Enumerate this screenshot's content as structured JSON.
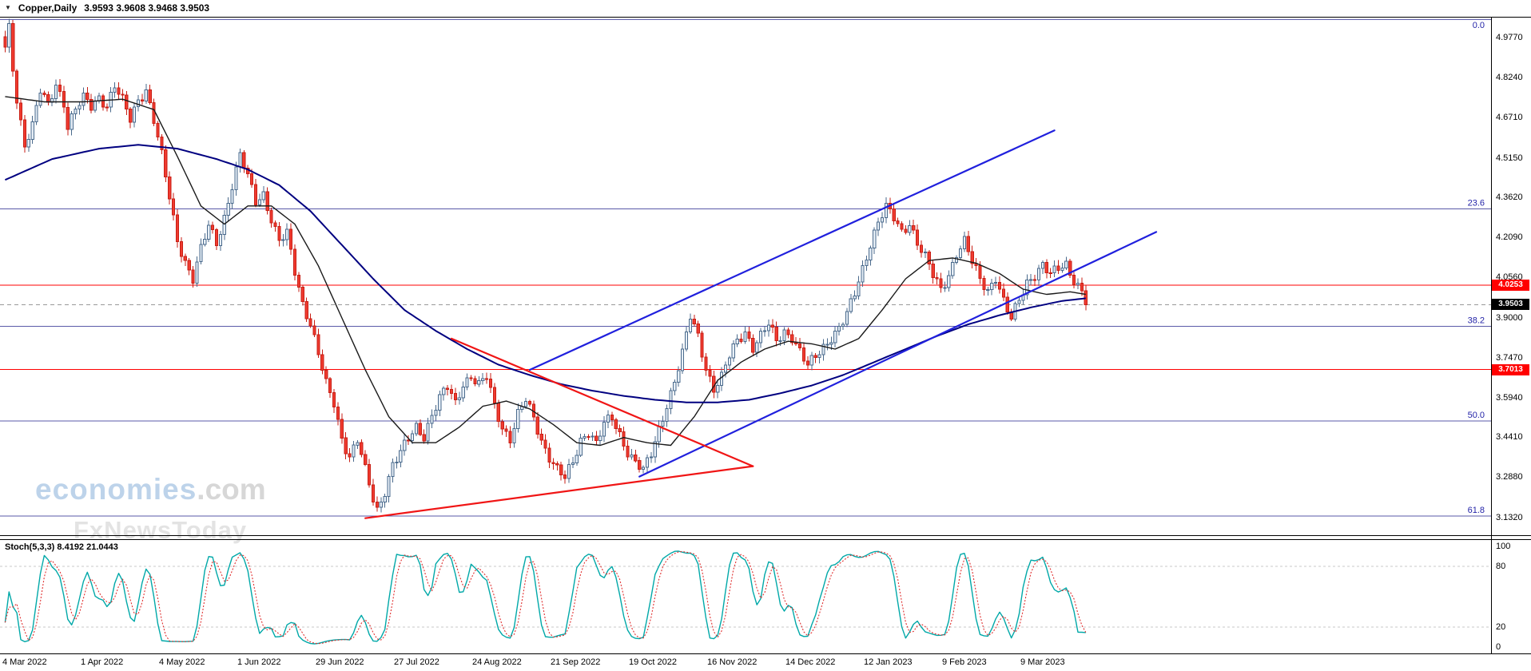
{
  "window": {
    "menu_icon": "▼",
    "symbol": "Copper,Daily",
    "ohlc": "3.9593 3.9608 3.9468 3.9503"
  },
  "watermark": {
    "brand": "economies",
    "brand_suffix": ".com",
    "subtitle": "FxNewsToday"
  },
  "colors": {
    "bull_fill": "#e6eef6",
    "bull_border": "#4a6a8c",
    "bear_fill": "#f03b30",
    "bear_border": "#c81e14",
    "ma_long": "#000080",
    "ma_short": "#1a1a1a",
    "trend_blue": "#2020dd",
    "trend_red": "#f01515",
    "fib_line": "#5a5aa8",
    "fib_text": "#2424a8",
    "h_line": "#ff0000",
    "current_line": "#999999",
    "stoch_k": "#00a8a8",
    "stoch_d": "#e03030",
    "stoch_level": "#c8c8c8",
    "tag_red_bg": "#ff0000",
    "tag_black_bg": "#000000"
  },
  "chart_data": {
    "type": "candlestick",
    "title": "Copper, Daily",
    "bars": 277,
    "ylim": [
      3.0647,
      5.0537
    ],
    "price_ticks": [
      {
        "label": "4.9770",
        "value": 4.977
      },
      {
        "label": "4.8240",
        "value": 4.824
      },
      {
        "label": "4.6710",
        "value": 4.671
      },
      {
        "label": "4.5150",
        "value": 4.515
      },
      {
        "label": "4.3620",
        "value": 4.362
      },
      {
        "label": "4.2090",
        "value": 4.209
      },
      {
        "label": "4.0560",
        "value": 4.056
      },
      {
        "label": "3.9000",
        "value": 3.9
      },
      {
        "label": "3.7470",
        "value": 3.747
      },
      {
        "label": "3.5940",
        "value": 3.594
      },
      {
        "label": "3.4410",
        "value": 3.441
      },
      {
        "label": "3.2880",
        "value": 3.288
      },
      {
        "label": "3.1320",
        "value": 3.132
      }
    ],
    "time_labels": [
      {
        "label": "4 Mar 2022",
        "bar": 0
      },
      {
        "label": "1 Apr 2022",
        "bar": 20
      },
      {
        "label": "4 May 2022",
        "bar": 40
      },
      {
        "label": "1 Jun 2022",
        "bar": 60
      },
      {
        "label": "29 Jun 2022",
        "bar": 80
      },
      {
        "label": "27 Jul 2022",
        "bar": 100
      },
      {
        "label": "24 Aug 2022",
        "bar": 120
      },
      {
        "label": "21 Sep 2022",
        "bar": 140
      },
      {
        "label": "19 Oct 2022",
        "bar": 160
      },
      {
        "label": "16 Nov 2022",
        "bar": 180
      },
      {
        "label": "14 Dec 2022",
        "bar": 200
      },
      {
        "label": "12 Jan 2023",
        "bar": 220
      },
      {
        "label": "9 Feb 2023",
        "bar": 240
      },
      {
        "label": "9 Mar 2023",
        "bar": 260
      }
    ],
    "fib_levels": [
      {
        "label": "0.0",
        "price": 5.046
      },
      {
        "label": "23.6",
        "price": 4.318
      },
      {
        "label": "38.2",
        "price": 3.867
      },
      {
        "label": "50.0",
        "price": 3.503
      },
      {
        "label": "61.8",
        "price": 3.139
      }
    ],
    "h_lines": [
      {
        "label": "4.0253",
        "price": 4.0253
      },
      {
        "label": "3.7013",
        "price": 3.7013
      }
    ],
    "current_price": {
      "label": "3.9503",
      "value": 3.9503
    },
    "trend_lines": [
      {
        "color_key": "trend_blue",
        "b1": 134,
        "p1": 3.7,
        "b2": 268,
        "p2": 4.62
      },
      {
        "color_key": "trend_blue",
        "b1": 162,
        "p1": 3.29,
        "b2": 294,
        "p2": 4.23
      },
      {
        "color_key": "trend_red",
        "b1": 114,
        "p1": 3.82,
        "b2": 191,
        "p2": 3.33
      },
      {
        "color_key": "trend_red",
        "b1": 92,
        "p1": 3.13,
        "b2": 191,
        "p2": 3.33
      }
    ],
    "close_anchors": [
      [
        0,
        4.93
      ],
      [
        1,
        5.01
      ],
      [
        2,
        4.86
      ],
      [
        3,
        4.74
      ],
      [
        5,
        4.57
      ],
      [
        7,
        4.64
      ],
      [
        9,
        4.77
      ],
      [
        11,
        4.71
      ],
      [
        13,
        4.8
      ],
      [
        15,
        4.73
      ],
      [
        16,
        4.64
      ],
      [
        18,
        4.7
      ],
      [
        20,
        4.74
      ],
      [
        22,
        4.71
      ],
      [
        24,
        4.75
      ],
      [
        26,
        4.72
      ],
      [
        28,
        4.79
      ],
      [
        30,
        4.73
      ],
      [
        32,
        4.66
      ],
      [
        34,
        4.74
      ],
      [
        36,
        4.78
      ],
      [
        38,
        4.66
      ],
      [
        40,
        4.52
      ],
      [
        42,
        4.36
      ],
      [
        44,
        4.2
      ],
      [
        46,
        4.12
      ],
      [
        48,
        4.05
      ],
      [
        50,
        4.16
      ],
      [
        52,
        4.25
      ],
      [
        54,
        4.19
      ],
      [
        56,
        4.29
      ],
      [
        58,
        4.41
      ],
      [
        60,
        4.52
      ],
      [
        62,
        4.44
      ],
      [
        64,
        4.35
      ],
      [
        66,
        4.38
      ],
      [
        68,
        4.28
      ],
      [
        70,
        4.19
      ],
      [
        72,
        4.22
      ],
      [
        74,
        4.08
      ],
      [
        76,
        3.96
      ],
      [
        78,
        3.88
      ],
      [
        80,
        3.76
      ],
      [
        82,
        3.64
      ],
      [
        84,
        3.57
      ],
      [
        86,
        3.44
      ],
      [
        88,
        3.37
      ],
      [
        90,
        3.43
      ],
      [
        92,
        3.31
      ],
      [
        94,
        3.2
      ],
      [
        95,
        3.16
      ],
      [
        97,
        3.24
      ],
      [
        99,
        3.34
      ],
      [
        101,
        3.38
      ],
      [
        103,
        3.43
      ],
      [
        105,
        3.48
      ],
      [
        107,
        3.45
      ],
      [
        109,
        3.53
      ],
      [
        111,
        3.59
      ],
      [
        113,
        3.63
      ],
      [
        115,
        3.57
      ],
      [
        117,
        3.65
      ],
      [
        119,
        3.68
      ],
      [
        121,
        3.64
      ],
      [
        123,
        3.67
      ],
      [
        125,
        3.56
      ],
      [
        127,
        3.48
      ],
      [
        129,
        3.44
      ],
      [
        131,
        3.53
      ],
      [
        133,
        3.58
      ],
      [
        135,
        3.51
      ],
      [
        137,
        3.43
      ],
      [
        139,
        3.37
      ],
      [
        141,
        3.32
      ],
      [
        143,
        3.28
      ],
      [
        145,
        3.34
      ],
      [
        147,
        3.43
      ],
      [
        149,
        3.47
      ],
      [
        151,
        3.42
      ],
      [
        153,
        3.49
      ],
      [
        155,
        3.51
      ],
      [
        157,
        3.45
      ],
      [
        159,
        3.39
      ],
      [
        161,
        3.35
      ],
      [
        163,
        3.31
      ],
      [
        165,
        3.37
      ],
      [
        167,
        3.47
      ],
      [
        169,
        3.57
      ],
      [
        171,
        3.66
      ],
      [
        173,
        3.76
      ],
      [
        175,
        3.9
      ],
      [
        177,
        3.83
      ],
      [
        179,
        3.71
      ],
      [
        181,
        3.63
      ],
      [
        183,
        3.67
      ],
      [
        185,
        3.75
      ],
      [
        187,
        3.81
      ],
      [
        189,
        3.85
      ],
      [
        191,
        3.79
      ],
      [
        193,
        3.83
      ],
      [
        195,
        3.87
      ],
      [
        197,
        3.81
      ],
      [
        199,
        3.85
      ],
      [
        201,
        3.83
      ],
      [
        203,
        3.77
      ],
      [
        205,
        3.71
      ],
      [
        207,
        3.75
      ],
      [
        209,
        3.79
      ],
      [
        211,
        3.83
      ],
      [
        213,
        3.86
      ],
      [
        215,
        3.91
      ],
      [
        217,
        3.99
      ],
      [
        219,
        4.09
      ],
      [
        221,
        4.19
      ],
      [
        223,
        4.27
      ],
      [
        225,
        4.32
      ],
      [
        227,
        4.28
      ],
      [
        229,
        4.23
      ],
      [
        231,
        4.27
      ],
      [
        233,
        4.19
      ],
      [
        235,
        4.13
      ],
      [
        237,
        4.06
      ],
      [
        239,
        4.01
      ],
      [
        241,
        4.07
      ],
      [
        243,
        4.15
      ],
      [
        245,
        4.19
      ],
      [
        247,
        4.11
      ],
      [
        249,
        4.05
      ],
      [
        251,
        4.01
      ],
      [
        253,
        4.06
      ],
      [
        255,
        3.96
      ],
      [
        257,
        3.89
      ],
      [
        259,
        3.97
      ],
      [
        261,
        4.04
      ],
      [
        263,
        4.07
      ],
      [
        265,
        4.1
      ],
      [
        267,
        4.06
      ],
      [
        269,
        4.09
      ],
      [
        271,
        4.11
      ],
      [
        273,
        4.05
      ],
      [
        275,
        4.0
      ],
      [
        276,
        3.95
      ]
    ],
    "ma_long_anchors": [
      [
        0,
        4.43
      ],
      [
        12,
        4.51
      ],
      [
        24,
        4.55
      ],
      [
        34,
        4.565
      ],
      [
        44,
        4.55
      ],
      [
        54,
        4.51
      ],
      [
        62,
        4.47
      ],
      [
        70,
        4.41
      ],
      [
        78,
        4.31
      ],
      [
        86,
        4.18
      ],
      [
        94,
        4.05
      ],
      [
        102,
        3.93
      ],
      [
        110,
        3.85
      ],
      [
        118,
        3.78
      ],
      [
        126,
        3.72
      ],
      [
        134,
        3.68
      ],
      [
        142,
        3.645
      ],
      [
        150,
        3.62
      ],
      [
        158,
        3.6
      ],
      [
        166,
        3.585
      ],
      [
        174,
        3.575
      ],
      [
        182,
        3.575
      ],
      [
        190,
        3.585
      ],
      [
        198,
        3.61
      ],
      [
        206,
        3.64
      ],
      [
        214,
        3.68
      ],
      [
        222,
        3.73
      ],
      [
        230,
        3.78
      ],
      [
        238,
        3.83
      ],
      [
        246,
        3.875
      ],
      [
        254,
        3.91
      ],
      [
        262,
        3.94
      ],
      [
        270,
        3.965
      ],
      [
        276,
        3.975
      ]
    ],
    "ma_short_anchors": [
      [
        0,
        4.75
      ],
      [
        10,
        4.73
      ],
      [
        20,
        4.73
      ],
      [
        30,
        4.74
      ],
      [
        38,
        4.7
      ],
      [
        44,
        4.52
      ],
      [
        50,
        4.33
      ],
      [
        56,
        4.26
      ],
      [
        62,
        4.33
      ],
      [
        68,
        4.33
      ],
      [
        74,
        4.26
      ],
      [
        80,
        4.1
      ],
      [
        86,
        3.9
      ],
      [
        92,
        3.7
      ],
      [
        98,
        3.52
      ],
      [
        104,
        3.42
      ],
      [
        110,
        3.42
      ],
      [
        116,
        3.48
      ],
      [
        122,
        3.56
      ],
      [
        128,
        3.58
      ],
      [
        134,
        3.55
      ],
      [
        140,
        3.49
      ],
      [
        146,
        3.42
      ],
      [
        152,
        3.41
      ],
      [
        158,
        3.44
      ],
      [
        164,
        3.42
      ],
      [
        170,
        3.41
      ],
      [
        176,
        3.52
      ],
      [
        182,
        3.66
      ],
      [
        188,
        3.73
      ],
      [
        194,
        3.78
      ],
      [
        200,
        3.81
      ],
      [
        206,
        3.8
      ],
      [
        212,
        3.78
      ],
      [
        218,
        3.82
      ],
      [
        224,
        3.93
      ],
      [
        230,
        4.05
      ],
      [
        236,
        4.12
      ],
      [
        242,
        4.13
      ],
      [
        248,
        4.11
      ],
      [
        254,
        4.07
      ],
      [
        260,
        4.01
      ],
      [
        266,
        3.99
      ],
      [
        272,
        4.0
      ],
      [
        276,
        3.99
      ]
    ],
    "stochastic": {
      "label": "Stoch(5,3,3) 8.4192 21.0443",
      "k_period": 5,
      "slowing": 3,
      "d_period": 3,
      "last_k": 8.4192,
      "last_d": 21.0443,
      "axis": [
        {
          "label": "100",
          "value": 100
        },
        {
          "label": "80",
          "value": 80
        },
        {
          "label": "20",
          "value": 20
        },
        {
          "label": "0",
          "value": 0
        }
      ],
      "levels": [
        80,
        20
      ]
    },
    "wiggle": {
      "a1": 0.016,
      "f1": 1.93,
      "a2": 0.011,
      "f2": 0.61,
      "ph2": 2.0
    },
    "wick": {
      "base": 0.007,
      "amp": 0.016
    }
  }
}
